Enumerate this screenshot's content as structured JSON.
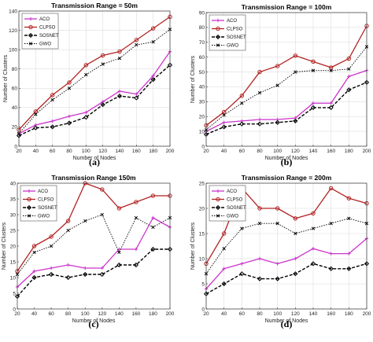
{
  "colors": {
    "ACO": "#cc33cc",
    "CLPSO": "#b22222",
    "SOSNET": "#000000",
    "GWO": "#000000"
  },
  "chart_data": [
    {
      "type": "line",
      "title": "Transmission Range = 50m",
      "caption": "(a)",
      "xlabel": "Number of Nodes",
      "ylabel": "Number of Clusters",
      "x": [
        20,
        40,
        60,
        80,
        100,
        120,
        140,
        160,
        180,
        200
      ],
      "xlim": [
        20,
        200
      ],
      "ylim": [
        0,
        140
      ],
      "yticks": [
        0,
        20,
        40,
        60,
        80,
        100,
        120,
        140
      ],
      "grid": true,
      "legend": "top-left",
      "series": [
        {
          "name": "ACO",
          "values": [
            13,
            22,
            26,
            31,
            35,
            46,
            57,
            54,
            73,
            98
          ]
        },
        {
          "name": "CLPSO",
          "values": [
            17,
            36,
            53,
            66,
            84,
            94,
            98,
            110,
            122,
            134
          ]
        },
        {
          "name": "SOSNET",
          "values": [
            11,
            19,
            20,
            24,
            30,
            43,
            52,
            50,
            69,
            84
          ]
        },
        {
          "name": "GWO",
          "values": [
            13,
            33,
            48,
            60,
            74,
            85,
            91,
            105,
            108,
            121
          ]
        }
      ]
    },
    {
      "type": "line",
      "title": "Transmission Range = 100m",
      "caption": "(b)",
      "xlabel": "Number of Nodes",
      "ylabel": "Number of Clusters",
      "x": [
        20,
        40,
        60,
        80,
        100,
        120,
        140,
        160,
        180,
        200
      ],
      "xlim": [
        20,
        200
      ],
      "ylim": [
        0,
        90
      ],
      "yticks": [
        0,
        10,
        20,
        30,
        40,
        50,
        60,
        70,
        80,
        90
      ],
      "grid": true,
      "legend": "top-left",
      "series": [
        {
          "name": "ACO",
          "values": [
            10,
            16,
            17,
            18,
            18,
            19,
            29,
            29,
            47,
            51
          ]
        },
        {
          "name": "CLPSO",
          "values": [
            14,
            23,
            34,
            50,
            54,
            61,
            57,
            53,
            59,
            81
          ]
        },
        {
          "name": "SOSNET",
          "values": [
            8,
            13,
            15,
            15,
            16,
            17,
            26,
            26,
            38,
            43
          ]
        },
        {
          "name": "GWO",
          "values": [
            11,
            21,
            29,
            36,
            41,
            50,
            51,
            51,
            52,
            67
          ]
        }
      ]
    },
    {
      "type": "line",
      "title": "Transmission Range 150m",
      "caption": "(c)",
      "xlabel": "Number of Nodes",
      "ylabel": "Number of Clusters",
      "x": [
        20,
        40,
        60,
        80,
        100,
        120,
        140,
        160,
        180,
        200
      ],
      "xlim": [
        20,
        200
      ],
      "ylim": [
        0,
        40
      ],
      "yticks": [
        0,
        5,
        10,
        15,
        20,
        25,
        30,
        35,
        40
      ],
      "grid": false,
      "legend": "top-left",
      "series": [
        {
          "name": "ACO",
          "values": [
            7,
            12,
            13,
            14,
            13,
            13,
            19,
            19,
            29,
            26
          ]
        },
        {
          "name": "CLPSO",
          "values": [
            12,
            20,
            23,
            28,
            40,
            38,
            32,
            34,
            36,
            36
          ]
        },
        {
          "name": "SOSNET",
          "values": [
            4,
            10,
            11,
            10,
            11,
            11,
            14,
            14,
            19,
            19
          ]
        },
        {
          "name": "GWO",
          "values": [
            11,
            18,
            20,
            25,
            28,
            30,
            18,
            29,
            26,
            29
          ]
        }
      ]
    },
    {
      "type": "line",
      "title": "Transmission Range = 200m",
      "caption": "(d)",
      "xlabel": "Number of Nodes",
      "ylabel": "Number of Clusters",
      "x": [
        20,
        40,
        60,
        80,
        100,
        120,
        140,
        160,
        180,
        200
      ],
      "xlim": [
        20,
        200
      ],
      "ylim": [
        0,
        25
      ],
      "yticks": [
        0,
        5,
        10,
        15,
        20,
        25
      ],
      "grid": true,
      "legend": "top-left",
      "series": [
        {
          "name": "ACO",
          "values": [
            4,
            8,
            9,
            10,
            9,
            10,
            12,
            11,
            11,
            14
          ]
        },
        {
          "name": "CLPSO",
          "values": [
            9,
            15,
            24,
            20,
            20,
            18,
            19,
            24,
            22,
            21
          ]
        },
        {
          "name": "SOSNET",
          "values": [
            3,
            5,
            7,
            6,
            6,
            7,
            9,
            8,
            8,
            9
          ]
        },
        {
          "name": "GWO",
          "values": [
            7,
            12,
            16,
            17,
            17,
            15,
            16,
            17,
            18,
            17
          ]
        }
      ]
    }
  ]
}
